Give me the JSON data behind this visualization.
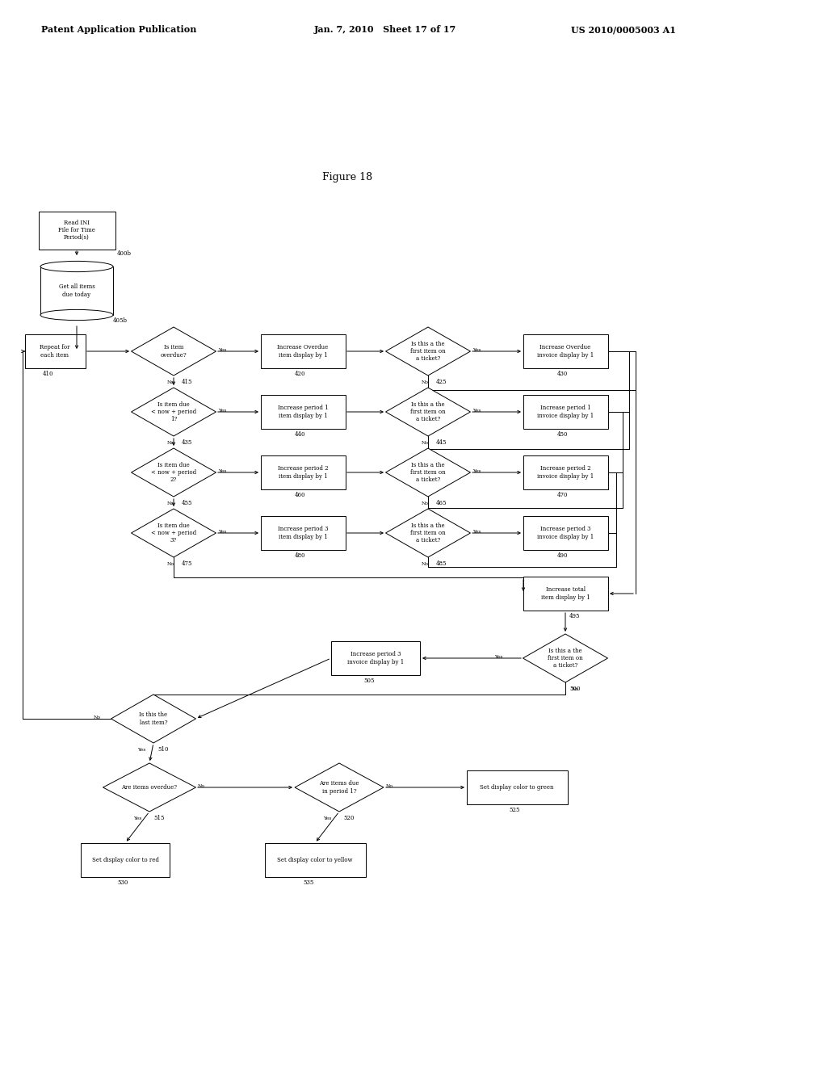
{
  "title": "Figure 18",
  "header_left": "Patent Application Publication",
  "header_center": "Jan. 7, 2010   Sheet 17 of 17",
  "header_right": "US 2010/0005003 A1",
  "bg_color": "#ffffff",
  "lw": 0.7,
  "fs": 5.0,
  "tag_fs": 5.0,
  "arrow_fs": 4.5
}
